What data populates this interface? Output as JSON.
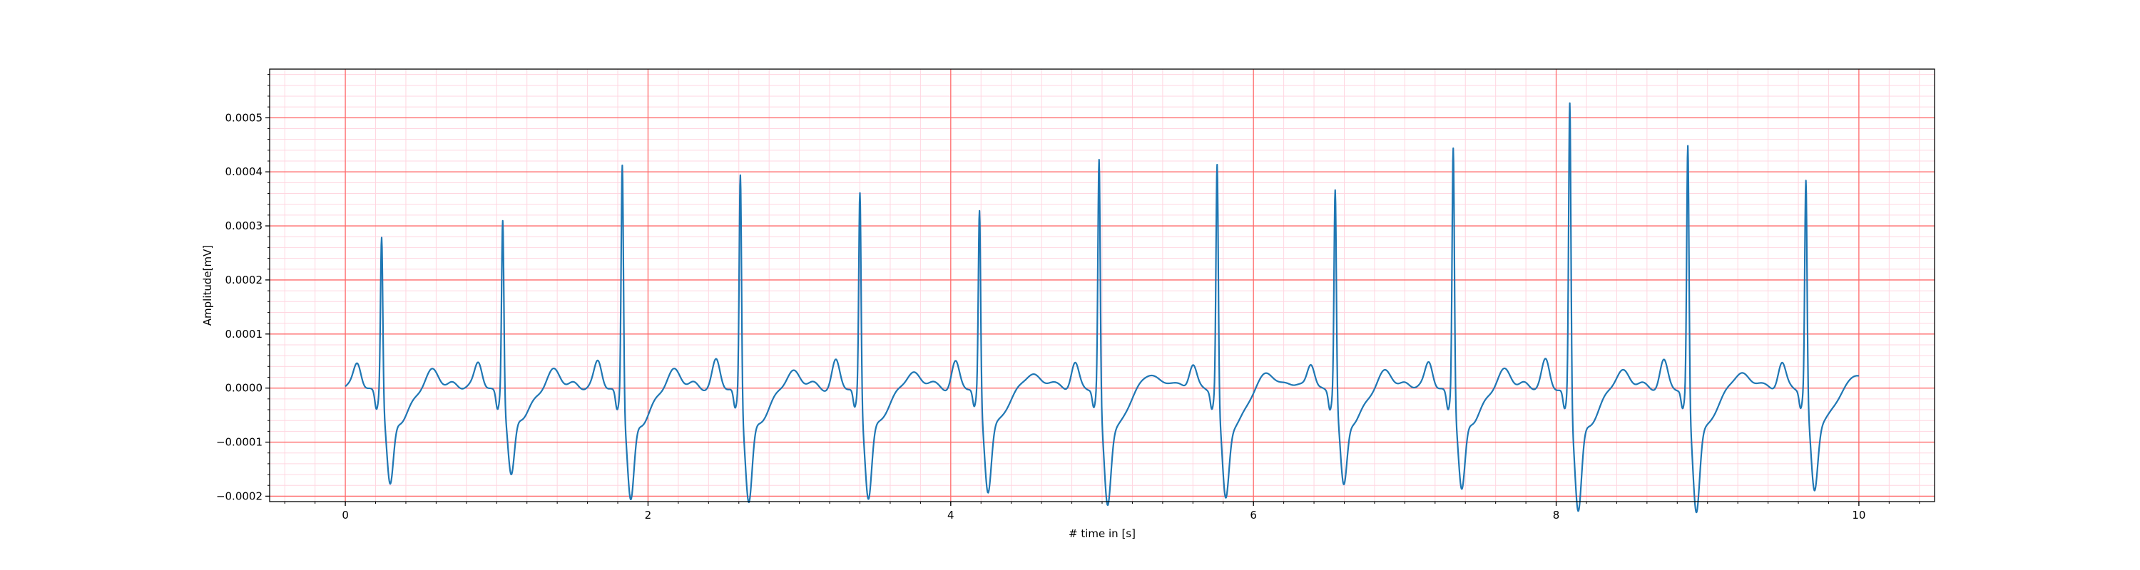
{
  "chart_data": {
    "type": "line",
    "title": "",
    "xlabel": "# time in [s]",
    "ylabel": "Amplitude[mV]",
    "xlim": [
      -0.5,
      10.5
    ],
    "ylim": [
      -0.00021,
      0.00059
    ],
    "x_ticks": [
      0,
      2,
      4,
      6,
      8,
      10
    ],
    "x_tick_labels": [
      "0",
      "2",
      "4",
      "6",
      "8",
      "10"
    ],
    "y_ticks": [
      -0.0002,
      -0.0001,
      0.0,
      0.0001,
      0.0002,
      0.0003,
      0.0004,
      0.0005
    ],
    "y_tick_labels": [
      "−0.0002",
      "−0.0001",
      "0.0000",
      "0.0001",
      "0.0002",
      "0.0003",
      "0.0004",
      "0.0005"
    ],
    "grid": {
      "major": true,
      "minor": true,
      "major_color": "#ff6b6b",
      "minor_color": "#ffd6e0"
    },
    "line_color": "#1f77b4",
    "beats": [
      {
        "t": 0.24,
        "peak": 0.000305,
        "trough": -0.000138
      },
      {
        "t": 1.04,
        "peak": 0.000335,
        "trough": -0.000125
      },
      {
        "t": 1.83,
        "peak": 0.000445,
        "trough": -0.000158
      },
      {
        "t": 2.61,
        "peak": 0.000425,
        "trough": -0.000157
      },
      {
        "t": 3.4,
        "peak": 0.000388,
        "trough": -0.00015
      },
      {
        "t": 4.19,
        "peak": 0.00035,
        "trough": -0.00014
      },
      {
        "t": 4.98,
        "peak": 0.000445,
        "trough": -0.000158
      },
      {
        "t": 5.76,
        "peak": 0.000435,
        "trough": -0.000152
      },
      {
        "t": 6.54,
        "peak": 0.00039,
        "trough": -0.000138
      },
      {
        "t": 7.32,
        "peak": 0.000473,
        "trough": -0.000145
      },
      {
        "t": 8.09,
        "peak": 0.00056,
        "trough": -0.00017
      },
      {
        "t": 8.87,
        "peak": 0.000477,
        "trough": -0.000168
      },
      {
        "t": 9.65,
        "peak": 0.000405,
        "trough": -0.000138
      }
    ],
    "t_start": 0.0,
    "t_end": 10.0
  }
}
